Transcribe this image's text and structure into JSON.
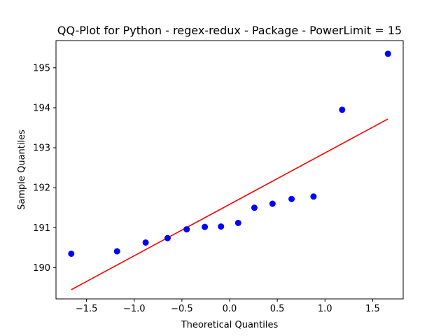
{
  "chart_data": {
    "type": "scatter",
    "title": "QQ-Plot for Python - regex-redux - Package - PowerLimit = 15",
    "xlabel": "Theoretical Quantiles",
    "ylabel": "Sample Quantiles",
    "xlim": [
      -1.82,
      1.82
    ],
    "ylim": [
      189.22,
      195.68
    ],
    "xticks": [
      -1.5,
      -1.0,
      -0.5,
      0.0,
      0.5,
      1.0,
      1.5
    ],
    "xtick_labels": [
      "−1.5",
      "−1.0",
      "−0.5",
      "0.0",
      "0.5",
      "1.0",
      "1.5"
    ],
    "yticks": [
      190,
      191,
      192,
      193,
      194,
      195
    ],
    "ytick_labels": [
      "190",
      "191",
      "192",
      "193",
      "194",
      "195"
    ],
    "grid": false,
    "points": {
      "color": "#0000ff",
      "x": [
        -1.66,
        -1.18,
        -0.88,
        -0.65,
        -0.45,
        -0.26,
        -0.09,
        0.09,
        0.26,
        0.45,
        0.65,
        0.88,
        1.18,
        1.66
      ],
      "y": [
        190.35,
        190.41,
        190.63,
        190.74,
        190.96,
        191.02,
        191.03,
        191.12,
        191.5,
        191.6,
        191.72,
        191.78,
        193.95,
        195.35
      ]
    },
    "fit_line": {
      "color": "#ff0000",
      "x": [
        -1.66,
        1.66
      ],
      "y": [
        189.45,
        193.72
      ]
    }
  }
}
